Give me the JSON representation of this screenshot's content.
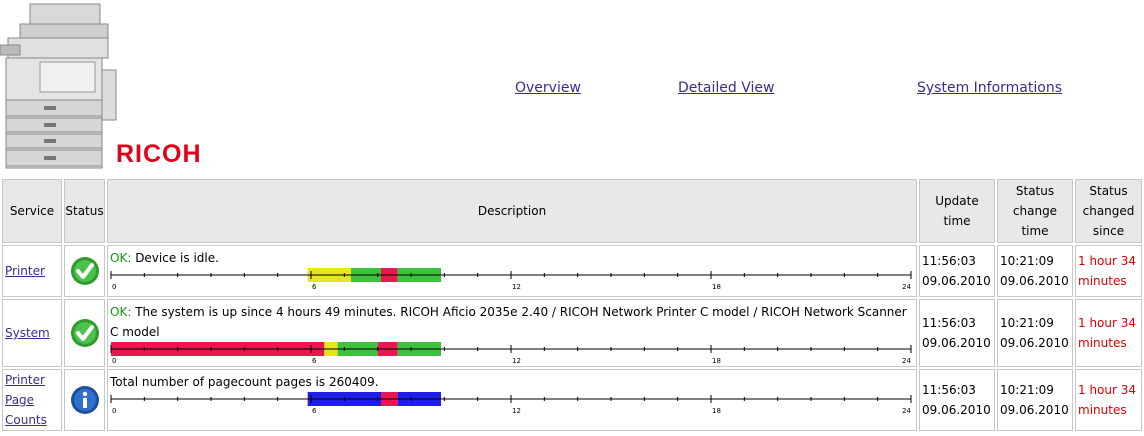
{
  "header": {
    "brand": "RICOH",
    "nav": [
      {
        "label": "Overview"
      },
      {
        "label": "Detailed View"
      },
      {
        "label": "System Informations"
      }
    ]
  },
  "table": {
    "columns": [
      "Service",
      "Status",
      "Description",
      "Update time",
      "Status change time",
      "Status changed since"
    ],
    "rows": [
      {
        "service": "Printer",
        "status_icon": "ok-check-icon",
        "ok_prefix": "OK:",
        "description": "Device is idle.",
        "update_time": "11:56:03",
        "update_date": "09.06.2010",
        "change_time": "10:21:09",
        "change_date": "09.06.2010",
        "since_line1": "1 hour 34",
        "since_line2": "minutes",
        "timeline": [
          {
            "from": 5.9,
            "to": 7.2,
            "color": "#e6e61a"
          },
          {
            "from": 7.2,
            "to": 8.1,
            "color": "#3cc23c"
          },
          {
            "from": 8.1,
            "to": 8.6,
            "color": "#e8174f"
          },
          {
            "from": 8.6,
            "to": 9.9,
            "color": "#3cc23c"
          }
        ]
      },
      {
        "service": "System",
        "status_icon": "ok-check-icon",
        "ok_prefix": "OK:",
        "description": "The system is up since 4 hours 49 minutes. RICOH Aficio 2035e 2.40 / RICOH Network Printer C model / RICOH Network Scanner C model",
        "update_time": "11:56:03",
        "update_date": "09.06.2010",
        "change_time": "10:21:09",
        "change_date": "09.06.2010",
        "since_line1": "1 hour 34",
        "since_line2": "minutes",
        "timeline": [
          {
            "from": 0.0,
            "to": 6.4,
            "color": "#e8174f"
          },
          {
            "from": 6.4,
            "to": 6.8,
            "color": "#e6e61a"
          },
          {
            "from": 6.8,
            "to": 8.0,
            "color": "#3cc23c"
          },
          {
            "from": 8.0,
            "to": 8.6,
            "color": "#e8174f"
          },
          {
            "from": 8.6,
            "to": 9.9,
            "color": "#3cc23c"
          }
        ]
      },
      {
        "service": "Printer Page Counts",
        "status_icon": "info-icon",
        "ok_prefix": "",
        "description": "Total number of pagecount pages is 260409.",
        "update_time": "11:56:03",
        "update_date": "09.06.2010",
        "change_time": "10:21:09",
        "change_date": "09.06.2010",
        "since_line1": "1 hour 34",
        "since_line2": "minutes",
        "timeline": [
          {
            "from": 5.9,
            "to": 8.1,
            "color": "#1e1ee6"
          },
          {
            "from": 8.1,
            "to": 8.6,
            "color": "#e8174f"
          },
          {
            "from": 8.6,
            "to": 9.9,
            "color": "#1e1ee6"
          }
        ]
      }
    ],
    "axis_ticks": [
      "0",
      "6",
      "12",
      "18",
      "24"
    ]
  }
}
